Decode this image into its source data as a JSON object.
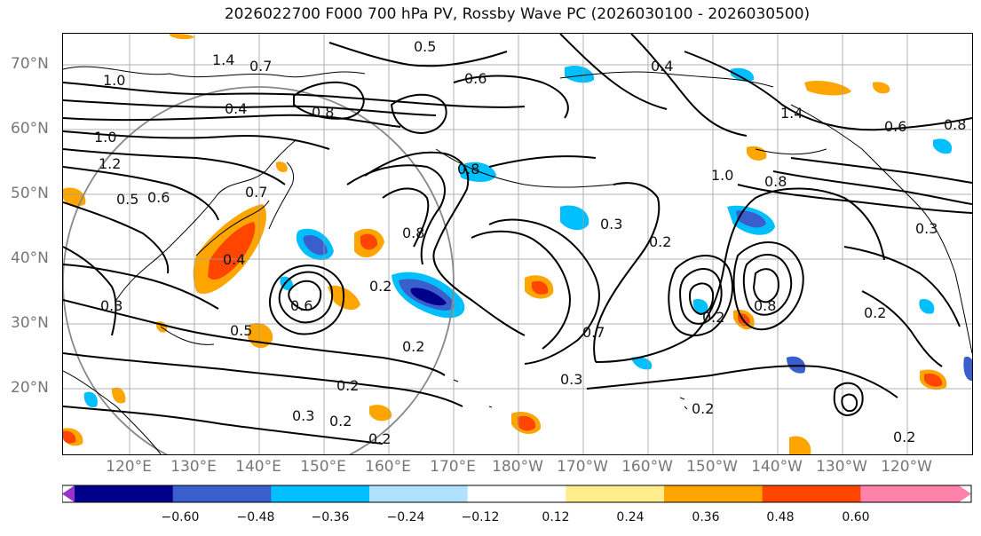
{
  "title": "2026022700 F000 700 hPa PV, Rossby Wave PC (2026030100 - 2026030500)",
  "lat_labels": [
    "70°N",
    "60°N",
    "50°N",
    "40°N",
    "30°N",
    "20°N"
  ],
  "lon_labels": [
    "120°E",
    "130°E",
    "140°E",
    "150°E",
    "160°E",
    "170°E",
    "180°W",
    "170°W",
    "160°W",
    "150°W",
    "140°W",
    "130°W",
    "120°W"
  ],
  "colorbar": {
    "colors": [
      "#9932cc",
      "#00008b",
      "#3a5fcd",
      "#00bfff",
      "#b0e2ff",
      "#ffffff",
      "#ffec8b",
      "#ffa500",
      "#ff4500",
      "#b22222",
      "#ff82ab"
    ],
    "ticks": [
      "−0.60",
      "−0.48",
      "−0.36",
      "−0.24",
      "−0.12",
      "0.12",
      "0.24",
      "0.36",
      "0.48",
      "0.60"
    ]
  },
  "contour_labels": [
    "1.0",
    "1.4",
    "0.7",
    "0.5",
    "0.8",
    "0.6",
    "0.4",
    "1.0",
    "1.2",
    "0.5",
    "0.6",
    "0.7",
    "0.4",
    "0.3",
    "0.2",
    "0.5",
    "0.2",
    "0.3",
    "0.2",
    "0.2",
    "0.3",
    "0.2",
    "0.2",
    "0.8",
    "0.6",
    "0.8",
    "0.7",
    "0.3",
    "0.2",
    "1.0",
    "0.8",
    "0.2",
    "1.4",
    "0.8",
    "0.2",
    "0.8",
    "0.6",
    "0.3",
    "0.2",
    "0.4"
  ]
}
